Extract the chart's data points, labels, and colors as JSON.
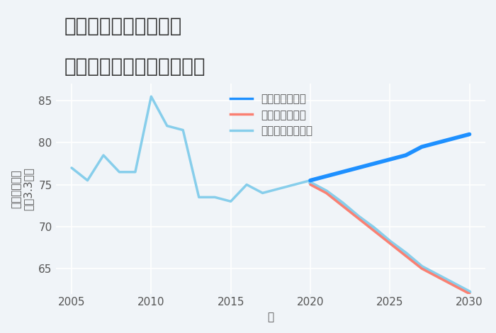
{
  "title_line1": "千葉県野田市関宿町の",
  "title_line2": "中古マンションの価格推移",
  "xlabel": "年",
  "ylabel": "単価（万円）\n坪（3.3㎡）",
  "background_color": "#f0f4f8",
  "plot_background": "#f0f4f8",
  "grid_color": "#ffffff",
  "historical_years": [
    2005,
    2006,
    2007,
    2008,
    2009,
    2010,
    2011,
    2012,
    2013,
    2014,
    2015,
    2016,
    2017,
    2018,
    2019,
    2020
  ],
  "historical_values": [
    77.0,
    75.5,
    78.5,
    76.5,
    76.5,
    85.5,
    82.0,
    81.5,
    73.5,
    73.5,
    73.0,
    75.0,
    74.0,
    74.5,
    75.0,
    75.5
  ],
  "good_years": [
    2020,
    2021,
    2022,
    2023,
    2024,
    2025,
    2026,
    2027,
    2028,
    2029,
    2030
  ],
  "good_values": [
    75.5,
    76.0,
    76.5,
    77.0,
    77.5,
    78.0,
    78.5,
    79.5,
    80.0,
    80.5,
    81.0
  ],
  "bad_years": [
    2020,
    2021,
    2022,
    2023,
    2024,
    2025,
    2026,
    2027,
    2028,
    2029,
    2030
  ],
  "bad_values": [
    75.0,
    74.0,
    72.5,
    71.0,
    69.5,
    68.0,
    66.5,
    65.0,
    64.0,
    63.0,
    62.0
  ],
  "normal_years": [
    2020,
    2021,
    2022,
    2023,
    2024,
    2025,
    2026,
    2027,
    2028,
    2029,
    2030
  ],
  "normal_values": [
    75.2,
    74.2,
    72.8,
    71.2,
    69.8,
    68.2,
    66.8,
    65.2,
    64.2,
    63.2,
    62.2
  ],
  "hist_color": "#87CEEB",
  "good_color": "#1E90FF",
  "bad_color": "#FA8072",
  "normal_color": "#87CEEB",
  "legend_labels": [
    "グッドシナリオ",
    "バッドシナリオ",
    "ノーマルシナリオ"
  ],
  "legend_colors": [
    "#1E90FF",
    "#FA8072",
    "#87CEEB"
  ],
  "ylim": [
    62,
    87
  ],
  "xlim": [
    2004,
    2031
  ],
  "yticks": [
    65,
    70,
    75,
    80,
    85
  ],
  "xticks": [
    2005,
    2010,
    2015,
    2020,
    2025,
    2030
  ],
  "title_fontsize": 20,
  "axis_fontsize": 11,
  "legend_fontsize": 11,
  "linewidth_hist": 2.5,
  "linewidth_future": 3.0
}
